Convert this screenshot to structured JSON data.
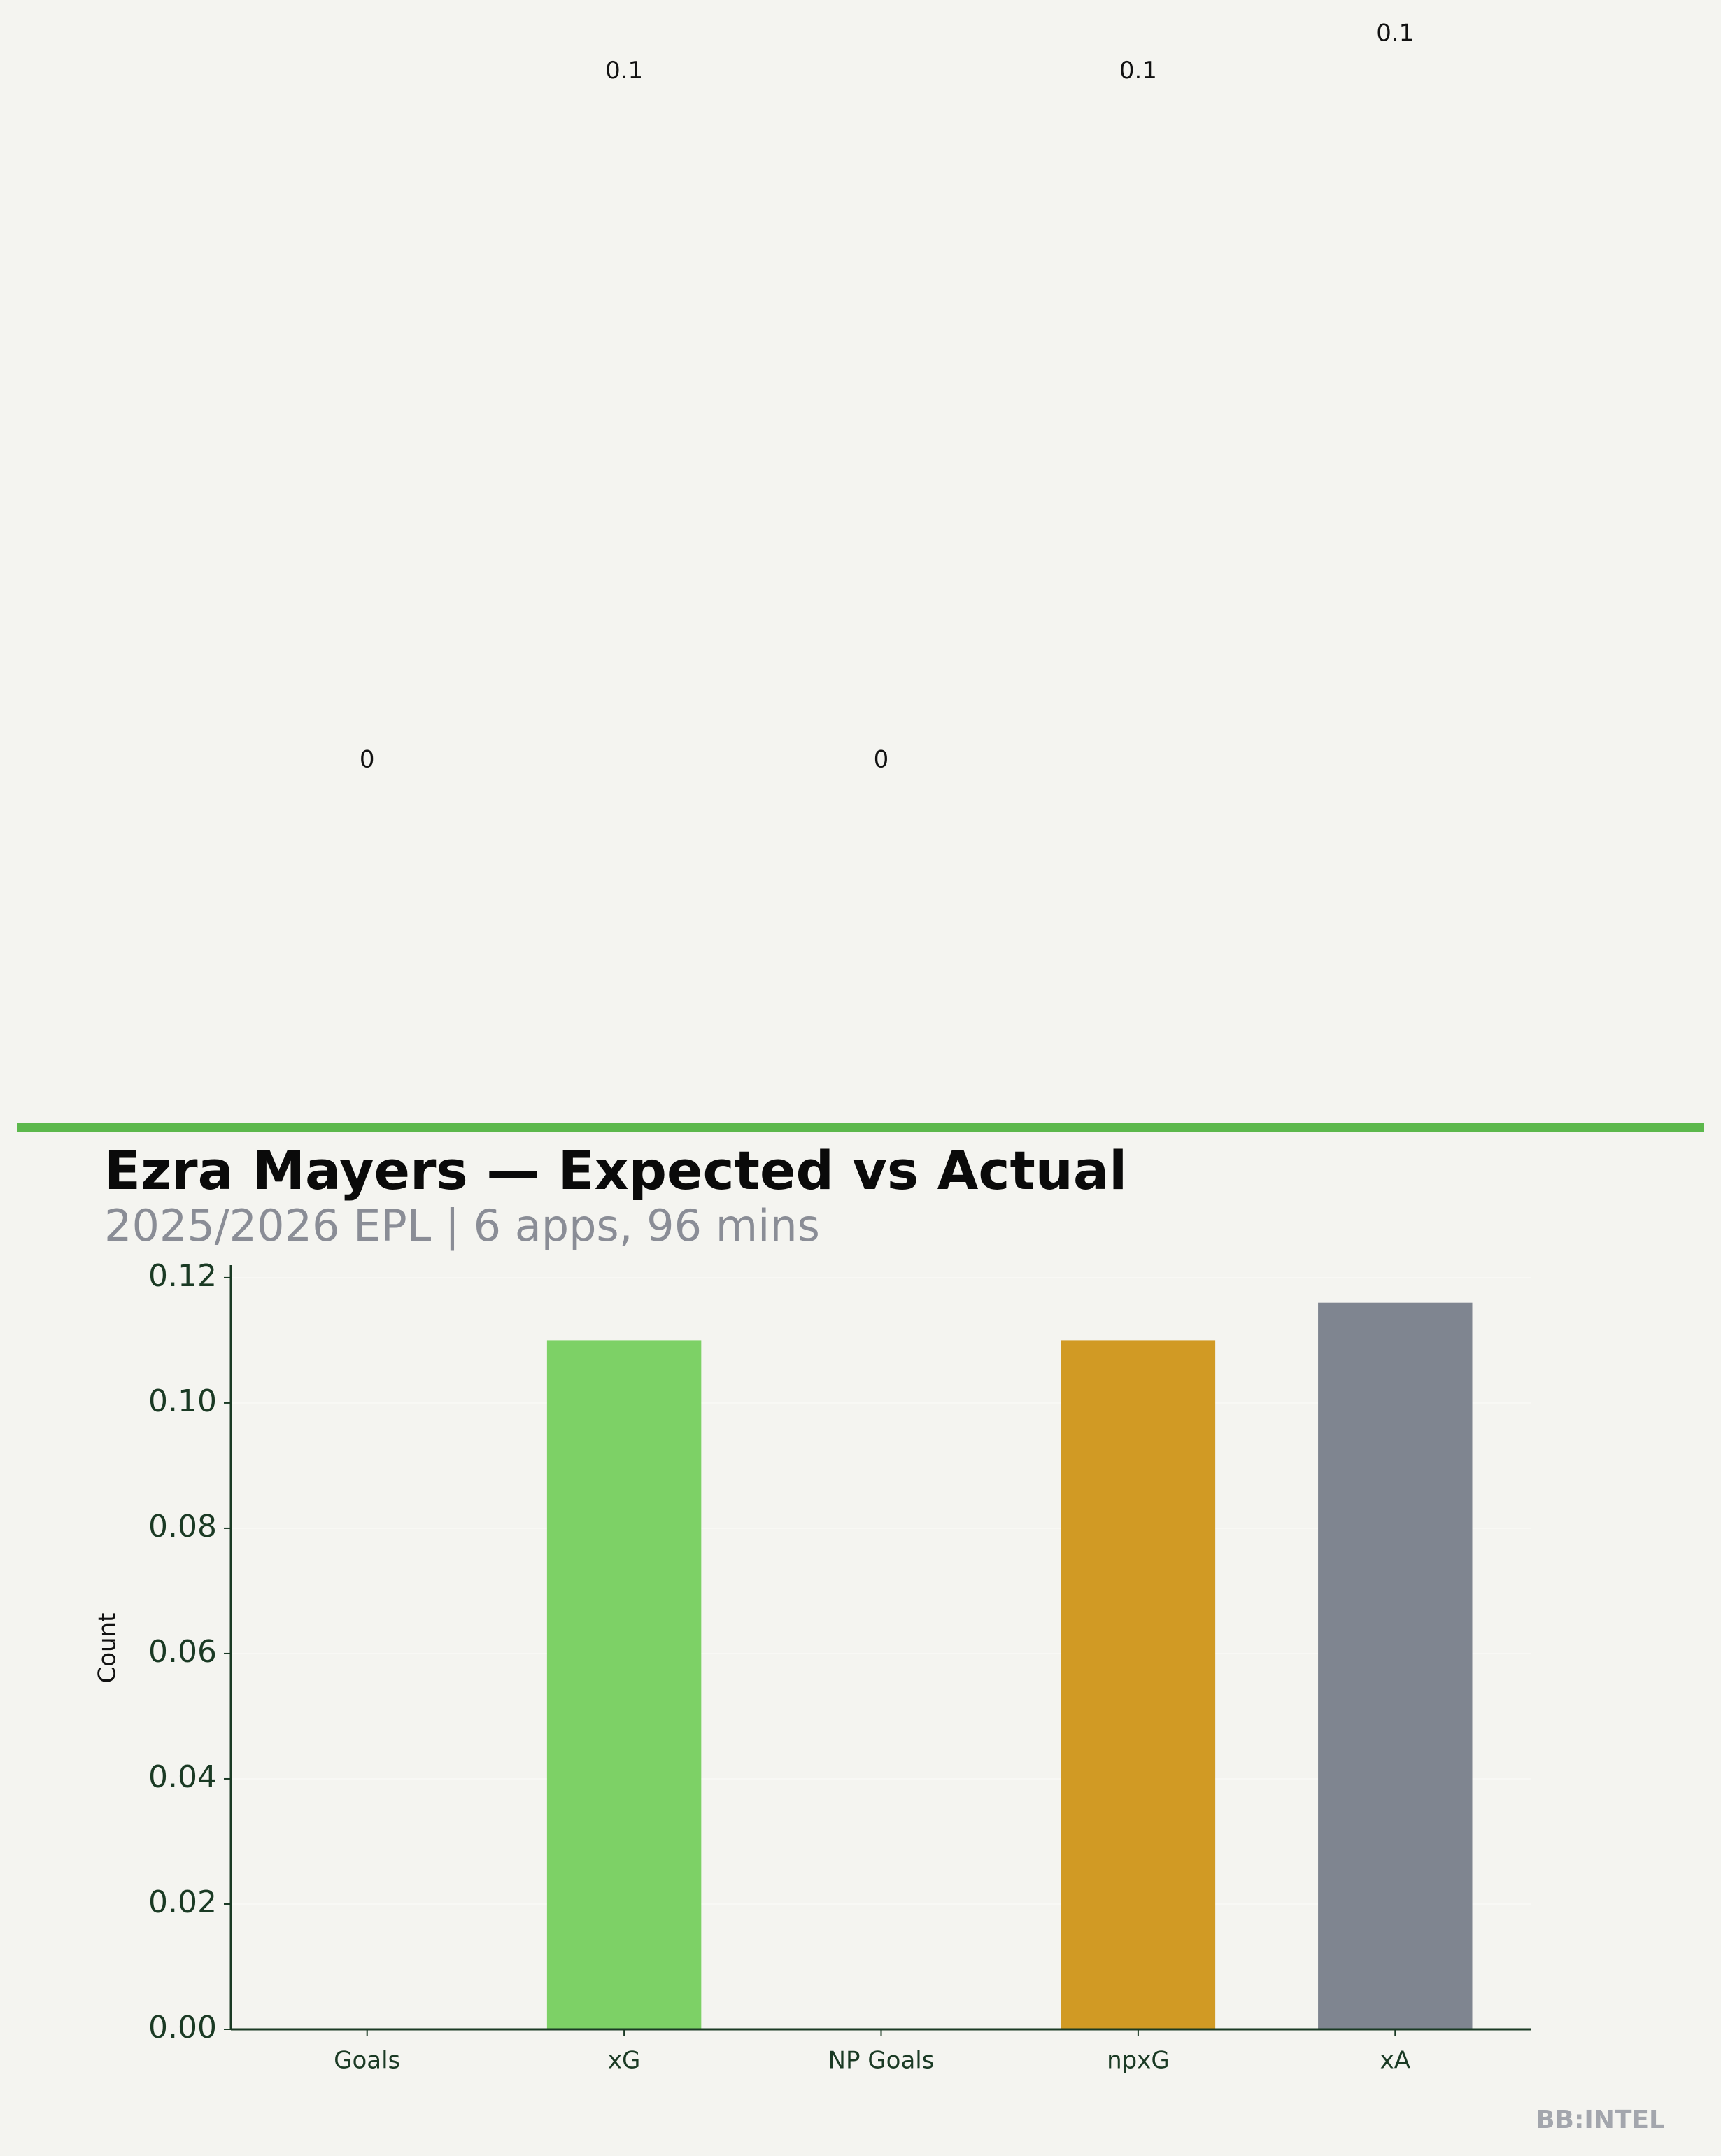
{
  "chart_data": {
    "type": "bar",
    "title": "Ezra Mayers — Expected vs Actual",
    "subtitle": "2025/2026 EPL | 6 apps, 96 mins",
    "y_label": "Count",
    "categories": [
      "Goals",
      "xG",
      "NP Goals",
      "npxG",
      "xA"
    ],
    "values": [
      0,
      0.11,
      0,
      0.11,
      0.116
    ],
    "value_labels": [
      "0",
      "0.1",
      "0",
      "0.1",
      "0.1"
    ],
    "colors": [
      "#5cb84c",
      "#7dd166",
      "#5cb84c",
      "#d19a24",
      "#7f8590"
    ],
    "ylim": [
      0,
      0.122
    ],
    "yticks": [
      {
        "value": 0,
        "label": "0.00"
      },
      {
        "value": 0.02,
        "label": "0.02"
      },
      {
        "value": 0.04,
        "label": "0.04"
      },
      {
        "value": 0.06,
        "label": "0.06"
      },
      {
        "value": 0.08,
        "label": "0.08"
      },
      {
        "value": 0.1,
        "label": "0.10"
      },
      {
        "value": 0.12,
        "label": "0.12"
      }
    ],
    "grid": true,
    "watermark": "BB:INTEL"
  }
}
